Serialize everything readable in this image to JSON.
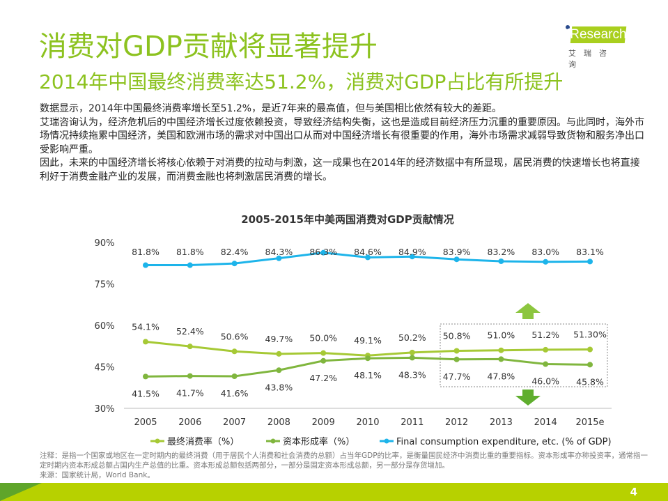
{
  "header": {
    "title": "消费对GDP贡献将显著提升",
    "subtitle": "2014年中国最终消费率达51.2%，消费对GDP占比有所提升"
  },
  "logo": {
    "text": "iResearch",
    "cn": "艾瑞咨询"
  },
  "body": [
    "数据显示，2014年中国最终消费率增长至51.2%，是近7年来的最高值，但与美国相比依然有较大的差距。",
    "艾瑞咨询认为，经济危机后的中国经济增长过度依赖投资，导致经济结构失衡，这也是造成目前经济压力沉重的重要原因。与此同时，海外市场情况持续拖累中国经济，美国和欧洲市场的需求对中国出口从而对中国经济增长有很重要的作用，海外市场需求减弱导致货物和服务净出口受影响严重。",
    "因此，未来的中国经济增长将核心依赖于对消费的拉动与刺激，这一成果也在2014年的经济数据中有所显现，居民消费的快速增长也将直接利好于消费金融产业的发展，而消费金融也将刺激居民消费的增长。"
  ],
  "chart_data": {
    "type": "line",
    "title": "2005-2015年中美两国消费对GDP贡献情况",
    "categories": [
      "2005",
      "2006",
      "2007",
      "2008",
      "2009",
      "2010",
      "2011",
      "2012",
      "2013",
      "2014",
      "2015e"
    ],
    "ylim": [
      30,
      90
    ],
    "yticks": [
      "30%",
      "45%",
      "60%",
      "75%",
      "90%"
    ],
    "ytick_values": [
      30,
      45,
      60,
      75,
      90
    ],
    "grid": false,
    "legend_position": "bottom",
    "series": [
      {
        "name": "最终消费率（%）",
        "color": "#a6c935",
        "values": [
          54.1,
          52.4,
          50.6,
          49.7,
          50.0,
          49.1,
          50.2,
          50.8,
          51.0,
          51.2,
          51.3
        ],
        "labels": [
          "54.1%",
          "52.4%",
          "50.6%",
          "49.7%",
          "50.0%",
          "49.1%",
          "50.2%",
          "50.8%",
          "51.0%",
          "51.2%",
          "51.30%"
        ],
        "label_pos": "above"
      },
      {
        "name": "资本形成率（%）",
        "color": "#80b63e",
        "values": [
          41.5,
          41.7,
          41.6,
          43.8,
          47.2,
          48.1,
          48.3,
          47.7,
          47.8,
          46.0,
          45.8
        ],
        "labels": [
          "41.5%",
          "41.7%",
          "41.6%",
          "43.8%",
          "47.2%",
          "48.1%",
          "48.3%",
          "47.7%",
          "47.8%",
          "46.0%",
          "45.8%"
        ],
        "label_pos": "below"
      },
      {
        "name": "Final consumption expenditure, etc. (% of GDP)",
        "color": "#1db4ea",
        "values": [
          81.8,
          81.8,
          82.4,
          84.3,
          86.3,
          84.6,
          84.9,
          83.9,
          83.2,
          83.0,
          83.1
        ],
        "labels": [
          "81.8%",
          "81.8%",
          "82.4%",
          "84.3%",
          "86.3%",
          "84.6%",
          "84.9%",
          "83.9%",
          "83.2%",
          "83.0%",
          "83.1%"
        ],
        "label_pos": "above"
      }
    ],
    "annotations": {
      "up_arrow_color": "#8cc63f",
      "down_arrow_color": "#5fae2e",
      "highlight": "2012-2015e"
    }
  },
  "notes": [
    "注释：是指一个国家或地区在一定时期内的最终消费（用于居民个人消费和社会消费的总额）占当年GDP的比率，是衡量国民经济中消费比重的重要指标。资本形成率亦称投资率，通常指一定时期内资本形成总额占国内生产总值的比重。资本形成总额包括两部分，一部分是固定资本形成总额，另一部分是存货增加。",
    "来源：国家统计局，World Bank。"
  ],
  "footer": {
    "page": "4"
  }
}
